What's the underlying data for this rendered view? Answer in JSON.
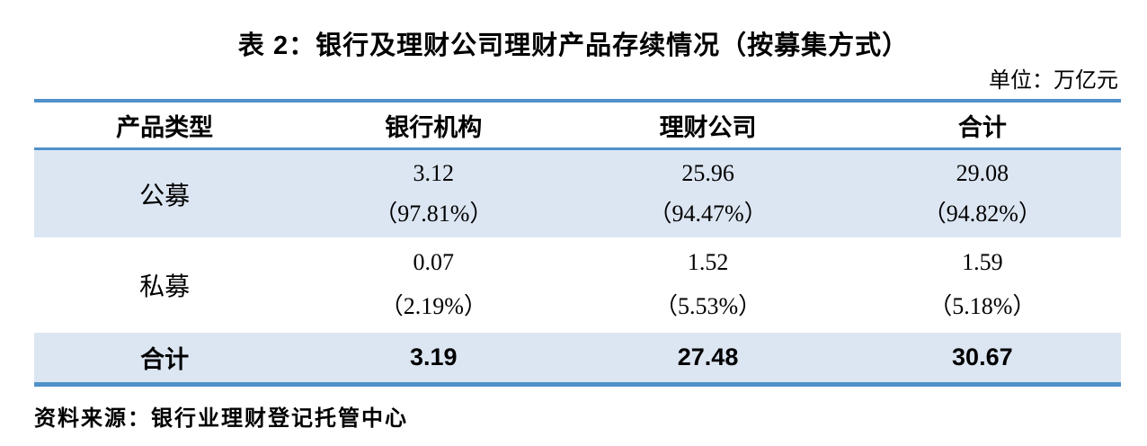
{
  "title": "表 2：银行及理财公司理财产品存续情况（按募集方式）",
  "unit_label": "单位：万亿元",
  "colors": {
    "accent_blue": "#4f91c9",
    "row_fill_blue": "#dce6f2",
    "text": "#000000"
  },
  "table": {
    "headers": [
      "产品类型",
      "银行机构",
      "理财公司",
      "合计"
    ],
    "rows": [
      {
        "label": "公募",
        "cells": [
          {
            "value": "3.12",
            "pct": "（97.81%）"
          },
          {
            "value": "25.96",
            "pct": "（94.47%）"
          },
          {
            "value": "29.08",
            "pct": "（94.82%）"
          }
        ]
      },
      {
        "label": "私募",
        "cells": [
          {
            "value": "0.07",
            "pct": "（2.19%）"
          },
          {
            "value": "1.52",
            "pct": "（5.53%）"
          },
          {
            "value": "1.59",
            "pct": "（5.18%）"
          }
        ]
      }
    ],
    "total_row": {
      "label": "合计",
      "values": [
        "3.19",
        "27.48",
        "30.67"
      ]
    }
  },
  "source": "资料来源：银行业理财登记托管中心"
}
